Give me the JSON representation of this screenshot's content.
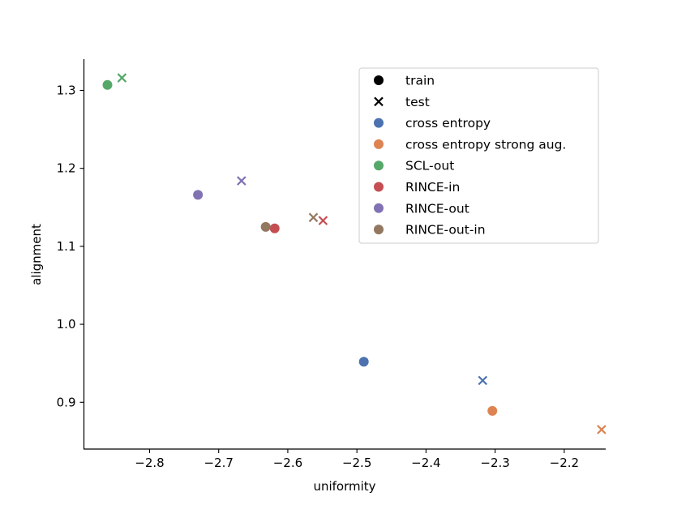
{
  "chart_data": {
    "type": "scatter",
    "title": "",
    "xlabel": "uniformity",
    "ylabel": "alignment",
    "xlim": [
      -2.895,
      -2.14
    ],
    "ylim": [
      0.84,
      1.34
    ],
    "xticks": [
      -2.8,
      -2.7,
      -2.6,
      -2.5,
      -2.4,
      -2.3,
      -2.2
    ],
    "xtick_labels": [
      "−2.8",
      "−2.7",
      "−2.6",
      "−2.5",
      "−2.4",
      "−2.3",
      "−2.2"
    ],
    "yticks": [
      0.9,
      1.0,
      1.1,
      1.2,
      1.3
    ],
    "ytick_labels": [
      "0.9",
      "1.0",
      "1.1",
      "1.2",
      "1.3"
    ],
    "grid": false,
    "legend_position": "top-right",
    "marker_legend": [
      {
        "label": "train",
        "marker": "circle",
        "color": "#000000"
      },
      {
        "label": "test",
        "marker": "x",
        "color": "#000000"
      }
    ],
    "series": [
      {
        "name": "cross entropy",
        "color": "#4c72b0",
        "train": {
          "x": -2.49,
          "y": 0.952
        },
        "test": {
          "x": -2.318,
          "y": 0.928
        }
      },
      {
        "name": "cross entropy strong aug.",
        "color": "#dd8452",
        "train": {
          "x": -2.304,
          "y": 0.889
        },
        "test": {
          "x": -2.146,
          "y": 0.865
        }
      },
      {
        "name": "SCL-out",
        "color": "#55a868",
        "train": {
          "x": -2.861,
          "y": 1.307
        },
        "test": {
          "x": -2.84,
          "y": 1.316
        }
      },
      {
        "name": "RINCE-in",
        "color": "#c44e52",
        "train": {
          "x": -2.619,
          "y": 1.123
        },
        "test": {
          "x": -2.549,
          "y": 1.133
        }
      },
      {
        "name": "RINCE-out",
        "color": "#8172b3",
        "train": {
          "x": -2.73,
          "y": 1.166
        },
        "test": {
          "x": -2.667,
          "y": 1.184
        }
      },
      {
        "name": "RINCE-out-in",
        "color": "#937860",
        "train": {
          "x": -2.632,
          "y": 1.125
        },
        "test": {
          "x": -2.563,
          "y": 1.137
        }
      }
    ]
  }
}
